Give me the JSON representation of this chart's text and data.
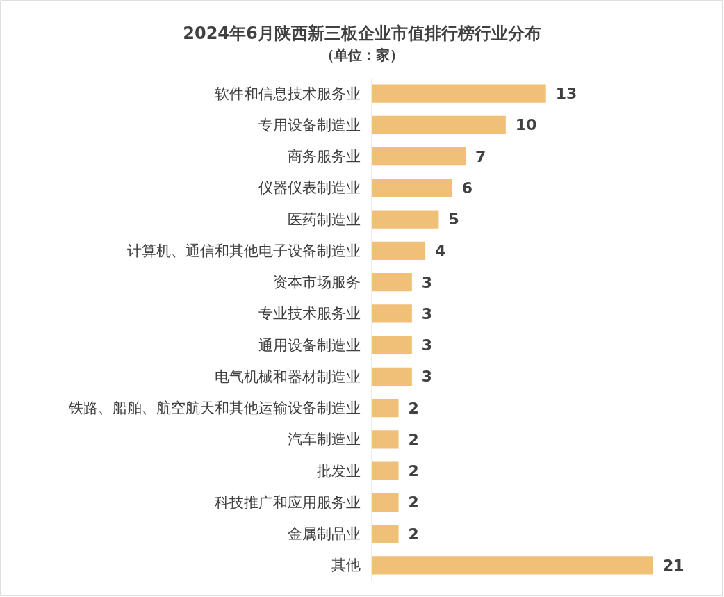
{
  "chart_data": {
    "type": "bar",
    "orientation": "horizontal",
    "title": "2024年6月陕西新三板企业市值排行榜行业分布",
    "subtitle": "（单位：家）",
    "categories": [
      "软件和信息技术服务业",
      "专用设备制造业",
      "商务服务业",
      "仪器仪表制造业",
      "医药制造业",
      "计算机、通信和其他电子设备制造业",
      "资本市场服务",
      "专业技术服务业",
      "通用设备制造业",
      "电气机械和器材制造业",
      "铁路、船舶、航空航天和其他运输设备制造业",
      "汽车制造业",
      "批发业",
      "科技推广和应用服务业",
      "金属制品业",
      "其他"
    ],
    "values": [
      13,
      10,
      7,
      6,
      5,
      4,
      3,
      3,
      3,
      3,
      2,
      2,
      2,
      2,
      2,
      21
    ],
    "color": "#f0bf78",
    "data_labels": true
  }
}
